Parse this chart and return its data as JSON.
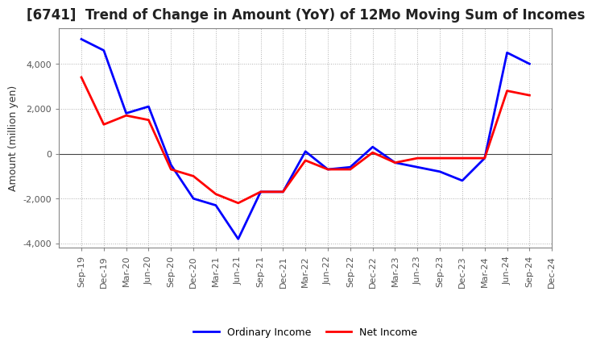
{
  "title": "[6741]  Trend of Change in Amount (YoY) of 12Mo Moving Sum of Incomes",
  "ylabel": "Amount (million yen)",
  "labels": [
    "Sep-19",
    "Dec-19",
    "Mar-20",
    "Jun-20",
    "Sep-20",
    "Dec-20",
    "Mar-21",
    "Jun-21",
    "Sep-21",
    "Dec-21",
    "Mar-22",
    "Jun-22",
    "Sep-22",
    "Dec-22",
    "Mar-23",
    "Jun-23",
    "Sep-23",
    "Dec-23",
    "Mar-24",
    "Jun-24",
    "Sep-24",
    "Dec-24"
  ],
  "ordinary_income": [
    5100,
    4600,
    1800,
    2100,
    -500,
    -2000,
    -2300,
    -3800,
    -1700,
    -1700,
    100,
    -700,
    -600,
    300,
    -400,
    -600,
    -800,
    -1200,
    -200,
    4500,
    4000,
    null
  ],
  "net_income": [
    3400,
    1300,
    1700,
    1500,
    -700,
    -1000,
    -1800,
    -2200,
    -1700,
    -1700,
    -300,
    -700,
    -700,
    50,
    -400,
    -200,
    -200,
    -200,
    -200,
    2800,
    2600,
    null
  ],
  "ordinary_color": "#0000ff",
  "net_color": "#ff0000",
  "ylim": [
    -4200,
    5600
  ],
  "yticks": [
    -4000,
    -2000,
    0,
    2000,
    4000
  ],
  "background_color": "#ffffff",
  "grid_color": "#b0b0b0",
  "title_fontsize": 12,
  "tick_label_color": "#555555",
  "ylabel_fontsize": 9,
  "tick_fontsize": 8
}
